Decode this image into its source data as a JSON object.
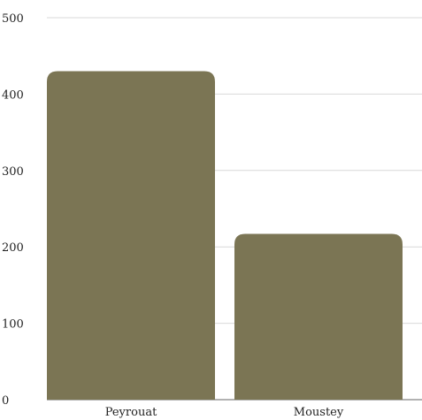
{
  "chart_data": {
    "type": "bar",
    "categories": [
      "Peyrouat",
      "Moustey"
    ],
    "values": [
      430,
      217
    ],
    "ylim": [
      0,
      500
    ],
    "yticks": [
      0,
      100,
      200,
      300,
      400,
      500
    ],
    "title": "",
    "xlabel": "",
    "ylabel": "",
    "grid": true,
    "legend": "none",
    "colors": {
      "bar": "#7b7554",
      "grid": "#d9d9d9",
      "text": "#222222"
    }
  }
}
